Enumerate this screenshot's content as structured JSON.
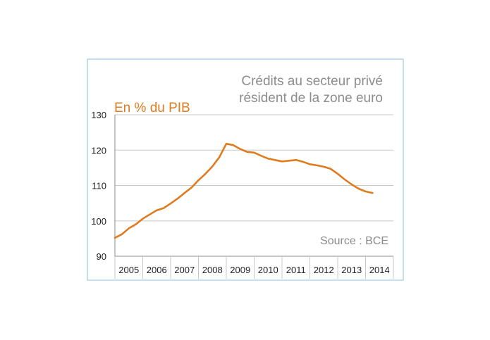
{
  "colors": {
    "frame": "#9ec9e6",
    "line": "#e07a1f",
    "grid": "#c8c8c8",
    "axis": "#8c8c8c",
    "title": "#8c8c8c",
    "unit": "#e07a1f"
  },
  "chart_data": {
    "type": "line",
    "title": "Crédits au secteur privé résident de la zone euro",
    "title_lines": [
      "Crédits au secteur privé",
      "résident de la zone euro"
    ],
    "ylabel": "En % du PIB",
    "source": "Source : BCE",
    "ylim": [
      90,
      130
    ],
    "yticks": [
      90,
      100,
      110,
      120,
      130
    ],
    "xlim": [
      2005,
      2015
    ],
    "categories": [
      "2005",
      "2006",
      "2007",
      "2008",
      "2009",
      "2010",
      "2011",
      "2012",
      "2013",
      "2014"
    ],
    "grid": true,
    "series": [
      {
        "x": [
          2005.0,
          2005.25,
          2005.5,
          2005.75,
          2006.0,
          2006.25,
          2006.5,
          2006.75,
          2007.0,
          2007.25,
          2007.5,
          2007.75,
          2008.0,
          2008.25,
          2008.5,
          2008.75,
          2009.0,
          2009.25,
          2009.5,
          2009.75,
          2010.0,
          2010.25,
          2010.5,
          2010.75,
          2011.0,
          2011.25,
          2011.5,
          2011.75,
          2012.0,
          2012.25,
          2012.5,
          2012.75,
          2013.0,
          2013.25,
          2013.5,
          2013.75,
          2014.0,
          2014.25
        ],
        "values": [
          95.2,
          96.2,
          97.9,
          99.0,
          100.6,
          101.8,
          103.0,
          103.6,
          104.9,
          106.3,
          107.9,
          109.4,
          111.5,
          113.3,
          115.4,
          118.0,
          121.8,
          121.4,
          120.3,
          119.5,
          119.3,
          118.4,
          117.6,
          117.2,
          116.8,
          117.0,
          117.2,
          116.7,
          116.0,
          115.7,
          115.3,
          114.7,
          113.3,
          111.7,
          110.3,
          109.1,
          108.3,
          107.9
        ]
      }
    ]
  }
}
